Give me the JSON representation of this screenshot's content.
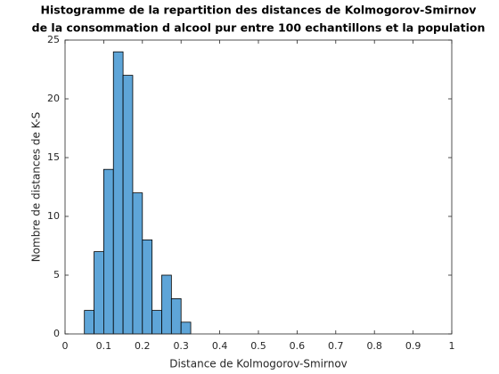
{
  "chart_data": {
    "type": "histogram",
    "title": [
      "Histogramme de la repartition des distances de Kolmogorov-Smirnov",
      "de la consommation d alcool pur entre 100 echantillons et la population"
    ],
    "xlabel": "Distance de Kolmogorov-Smirnov",
    "ylabel": "Nombre de distances de K-S",
    "bins": [
      0.05,
      0.075,
      0.1,
      0.125,
      0.15,
      0.175,
      0.2,
      0.225,
      0.25,
      0.275,
      0.3,
      0.325
    ],
    "values": [
      2,
      7,
      14,
      24,
      22,
      12,
      8,
      2,
      5,
      3,
      1
    ],
    "color": "#5ea5d8",
    "xlim": [
      0,
      1
    ],
    "xticks": [
      0,
      0.1,
      0.2,
      0.3,
      0.4,
      0.5,
      0.6,
      0.7,
      0.8,
      0.9,
      1
    ],
    "ylim": [
      0,
      25
    ],
    "yticks": [
      0,
      5,
      10,
      15,
      20,
      25
    ],
    "grid": false
  }
}
